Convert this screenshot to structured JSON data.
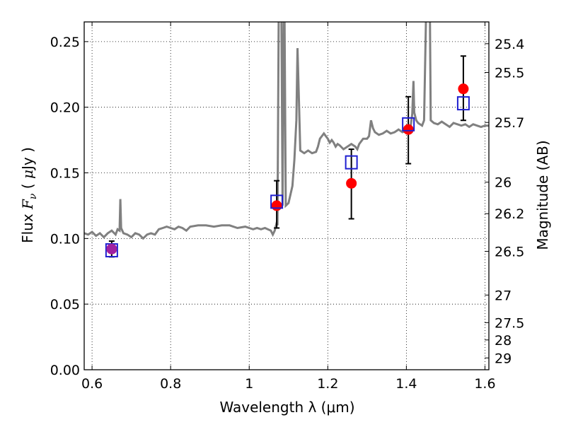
{
  "chart_data": {
    "type": "scatter",
    "xlabel": "Wavelength  λ (μm)",
    "ylabel_left": "Flux  F_ν  ( μJy )",
    "ylabel_right": "Magnitude (AB)",
    "xlim": [
      0.58,
      1.61
    ],
    "ylim": [
      0.0,
      0.265
    ],
    "grid": true,
    "x_ticks": [
      0.6,
      0.8,
      1.0,
      1.2,
      1.4,
      1.6
    ],
    "x_tick_labels": [
      "0.6",
      "0.8",
      "1",
      "1.2",
      "1.4",
      "1.6"
    ],
    "y_ticks": [
      0.0,
      0.05,
      0.1,
      0.15,
      0.2,
      0.25
    ],
    "y_tick_labels": [
      "0.00",
      "0.05",
      "0.10",
      "0.15",
      "0.20",
      "0.25"
    ],
    "right_ticks": [
      {
        "label": "25.4",
        "flux": 0.2484
      },
      {
        "label": "25.5",
        "flux": 0.2265
      },
      {
        "label": "25.7",
        "flux": 0.1884
      },
      {
        "label": "26",
        "flux": 0.1429
      },
      {
        "label": "26.2",
        "flux": 0.1189
      },
      {
        "label": "26.5",
        "flux": 0.0902
      },
      {
        "label": "27",
        "flux": 0.0569
      },
      {
        "label": "27.5",
        "flux": 0.0359
      },
      {
        "label": "28",
        "flux": 0.0227
      },
      {
        "label": "29",
        "flux": 0.009
      }
    ],
    "series": [
      {
        "kind": "model_spectrum",
        "color": "#808080",
        "points": [
          [
            0.58,
            0.104
          ],
          [
            0.59,
            0.103
          ],
          [
            0.6,
            0.105
          ],
          [
            0.61,
            0.102
          ],
          [
            0.62,
            0.104
          ],
          [
            0.63,
            0.101
          ],
          [
            0.64,
            0.104
          ],
          [
            0.65,
            0.106
          ],
          [
            0.66,
            0.103
          ],
          [
            0.665,
            0.107
          ],
          [
            0.67,
            0.106
          ],
          [
            0.672,
            0.13
          ],
          [
            0.674,
            0.108
          ],
          [
            0.68,
            0.104
          ],
          [
            0.69,
            0.103
          ],
          [
            0.7,
            0.101
          ],
          [
            0.71,
            0.104
          ],
          [
            0.72,
            0.103
          ],
          [
            0.73,
            0.1
          ],
          [
            0.74,
            0.103
          ],
          [
            0.75,
            0.104
          ],
          [
            0.76,
            0.103
          ],
          [
            0.77,
            0.107
          ],
          [
            0.78,
            0.108
          ],
          [
            0.79,
            0.109
          ],
          [
            0.8,
            0.108
          ],
          [
            0.81,
            0.107
          ],
          [
            0.82,
            0.109
          ],
          [
            0.83,
            0.108
          ],
          [
            0.84,
            0.106
          ],
          [
            0.85,
            0.109
          ],
          [
            0.87,
            0.11
          ],
          [
            0.89,
            0.11
          ],
          [
            0.91,
            0.109
          ],
          [
            0.93,
            0.11
          ],
          [
            0.95,
            0.11
          ],
          [
            0.97,
            0.108
          ],
          [
            0.99,
            0.109
          ],
          [
            1.0,
            0.108
          ],
          [
            1.01,
            0.107
          ],
          [
            1.02,
            0.108
          ],
          [
            1.03,
            0.107
          ],
          [
            1.04,
            0.108
          ],
          [
            1.055,
            0.106
          ],
          [
            1.06,
            0.103
          ],
          [
            1.065,
            0.106
          ],
          [
            1.07,
            0.112
          ],
          [
            1.072,
            0.11
          ],
          [
            1.075,
            0.27
          ],
          [
            1.082,
            0.27
          ],
          [
            1.085,
            0.125
          ],
          [
            1.088,
            0.27
          ],
          [
            1.09,
            0.27
          ],
          [
            1.093,
            0.125
          ],
          [
            1.1,
            0.127
          ],
          [
            1.11,
            0.14
          ],
          [
            1.115,
            0.16
          ],
          [
            1.12,
            0.19
          ],
          [
            1.123,
            0.245
          ],
          [
            1.127,
            0.2
          ],
          [
            1.13,
            0.167
          ],
          [
            1.14,
            0.165
          ],
          [
            1.15,
            0.167
          ],
          [
            1.16,
            0.165
          ],
          [
            1.17,
            0.166
          ],
          [
            1.175,
            0.17
          ],
          [
            1.18,
            0.176
          ],
          [
            1.185,
            0.178
          ],
          [
            1.19,
            0.18
          ],
          [
            1.195,
            0.178
          ],
          [
            1.2,
            0.176
          ],
          [
            1.205,
            0.173
          ],
          [
            1.21,
            0.175
          ],
          [
            1.215,
            0.173
          ],
          [
            1.22,
            0.17
          ],
          [
            1.225,
            0.172
          ],
          [
            1.23,
            0.171
          ],
          [
            1.24,
            0.168
          ],
          [
            1.25,
            0.17
          ],
          [
            1.26,
            0.172
          ],
          [
            1.27,
            0.17
          ],
          [
            1.275,
            0.168
          ],
          [
            1.28,
            0.172
          ],
          [
            1.29,
            0.176
          ],
          [
            1.3,
            0.176
          ],
          [
            1.305,
            0.178
          ],
          [
            1.31,
            0.19
          ],
          [
            1.315,
            0.184
          ],
          [
            1.32,
            0.181
          ],
          [
            1.33,
            0.179
          ],
          [
            1.34,
            0.18
          ],
          [
            1.35,
            0.182
          ],
          [
            1.36,
            0.18
          ],
          [
            1.37,
            0.181
          ],
          [
            1.38,
            0.183
          ],
          [
            1.39,
            0.181
          ],
          [
            1.4,
            0.182
          ],
          [
            1.41,
            0.183
          ],
          [
            1.415,
            0.195
          ],
          [
            1.418,
            0.22
          ],
          [
            1.42,
            0.196
          ],
          [
            1.425,
            0.19
          ],
          [
            1.43,
            0.188
          ],
          [
            1.44,
            0.186
          ],
          [
            1.445,
            0.19
          ],
          [
            1.45,
            0.27
          ],
          [
            1.46,
            0.27
          ],
          [
            1.462,
            0.19
          ],
          [
            1.47,
            0.188
          ],
          [
            1.48,
            0.187
          ],
          [
            1.49,
            0.189
          ],
          [
            1.5,
            0.187
          ],
          [
            1.51,
            0.185
          ],
          [
            1.52,
            0.188
          ],
          [
            1.53,
            0.187
          ],
          [
            1.54,
            0.186
          ],
          [
            1.55,
            0.187
          ],
          [
            1.56,
            0.185
          ],
          [
            1.57,
            0.187
          ],
          [
            1.58,
            0.186
          ],
          [
            1.59,
            0.185
          ],
          [
            1.6,
            0.186
          ],
          [
            1.61,
            0.186
          ]
        ]
      },
      {
        "kind": "model_photometry",
        "color": "#1f1fd0",
        "x": [
          0.65,
          1.07,
          1.26,
          1.405,
          1.545
        ],
        "y": [
          0.091,
          0.128,
          0.158,
          0.187,
          0.203
        ]
      },
      {
        "kind": "observed_photometry",
        "color": "#ff0000",
        "x": [
          0.65,
          1.07,
          1.26,
          1.405,
          1.545
        ],
        "y": [
          0.092,
          0.125,
          0.142,
          0.183,
          0.214
        ],
        "yerr_low": [
          0.086,
          0.108,
          0.115,
          0.157,
          0.19
        ],
        "yerr_high": [
          0.098,
          0.144,
          0.168,
          0.208,
          0.239
        ]
      }
    ]
  }
}
